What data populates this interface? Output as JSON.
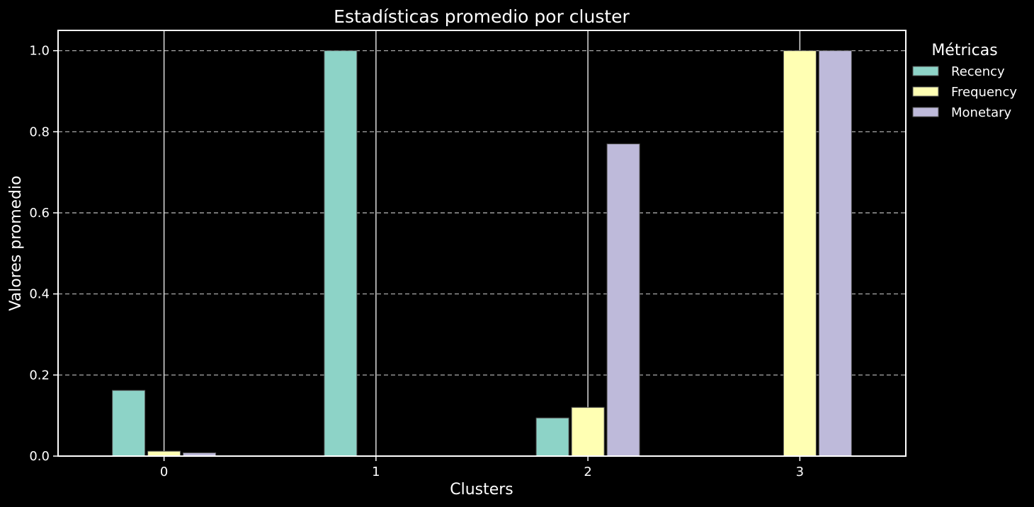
{
  "chart_data": {
    "type": "bar",
    "title": "Estadísticas promedio por cluster",
    "xlabel": "Clusters",
    "ylabel": "Valores promedio",
    "categories": [
      "0",
      "1",
      "2",
      "3"
    ],
    "series": [
      {
        "name": "Recency",
        "color": "#8dd3c7",
        "values": [
          0.162,
          1.0,
          0.094,
          0.0
        ]
      },
      {
        "name": "Frequency",
        "color": "#ffffb3",
        "values": [
          0.012,
          0.0,
          0.12,
          1.0
        ]
      },
      {
        "name": "Monetary",
        "color": "#bebada",
        "values": [
          0.008,
          0.0,
          0.77,
          1.0
        ]
      }
    ],
    "ylim": [
      0,
      1.05
    ],
    "yticks": [
      "0.0",
      "0.2",
      "0.4",
      "0.6",
      "0.8",
      "1.0"
    ],
    "ytick_values": [
      0,
      0.2,
      0.4,
      0.6,
      0.8,
      1.0
    ],
    "grid": "y-dashed",
    "legend": {
      "title": "Métricas",
      "placement": "outside-top-right"
    },
    "background": "#000000",
    "foreground": "#ffffff"
  }
}
